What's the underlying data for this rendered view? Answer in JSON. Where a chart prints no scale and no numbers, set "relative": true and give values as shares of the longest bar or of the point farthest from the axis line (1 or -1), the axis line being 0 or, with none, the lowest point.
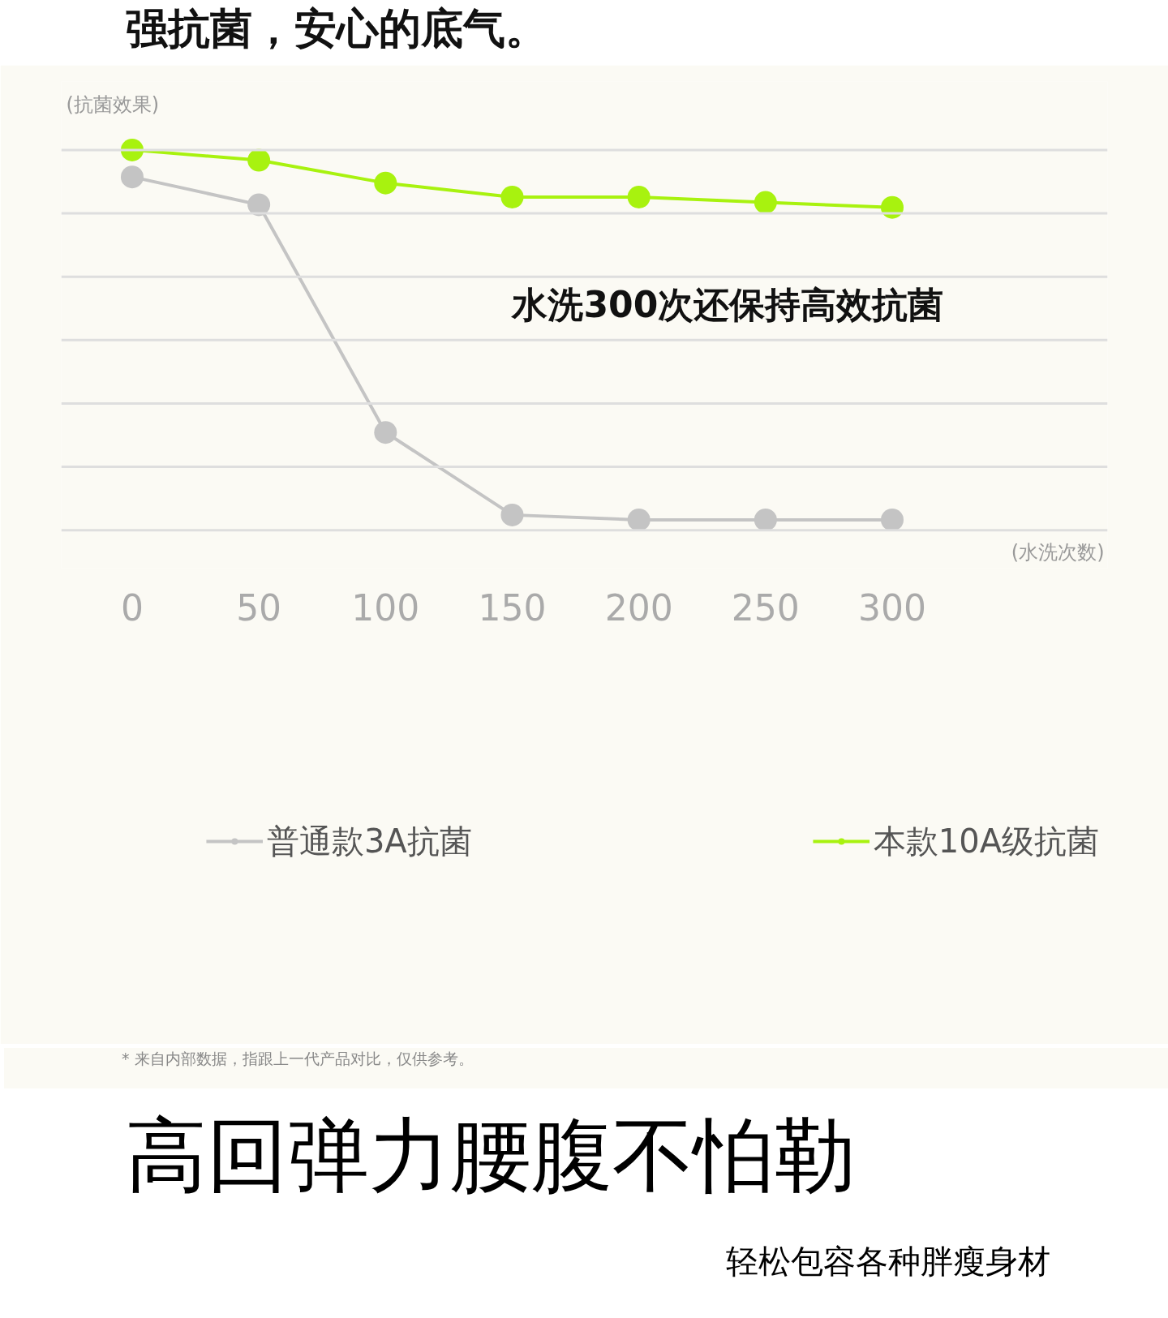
{
  "chart_data": {
    "type": "line",
    "title": "强抗菌，安心的底气。",
    "ylabel": "(抗菌效果)",
    "xlabel": "(水洗次数)",
    "relative": true,
    "x": [
      0,
      50,
      100,
      150,
      200,
      250,
      300
    ],
    "xlim": [
      -28,
      385
    ],
    "xticks": [
      0,
      50,
      100,
      150,
      200,
      250,
      300
    ],
    "grid": "y",
    "legend": "bottom",
    "marker": "circle",
    "line_style": "solid",
    "series": [
      {
        "name": "普通款3A抗菌",
        "color": "#c4c4c4",
        "values": [
          0.929,
          0.856,
          0.257,
          0.04,
          0.027,
          0.027,
          0.027
        ]
      },
      {
        "name": "本款10A级抗菌",
        "color": "#a8f20f",
        "values": [
          1,
          0.973,
          0.913,
          0.876,
          0.876,
          0.862,
          0.849
        ]
      }
    ],
    "annotations": [
      "水洗300次还保持高效抗菌",
      "* 来自内部数据，指跟上一代产品对比，仅供参考。",
      "高回弹力腰腹不怕勒",
      "轻松包容各种胖瘦身材"
    ]
  }
}
